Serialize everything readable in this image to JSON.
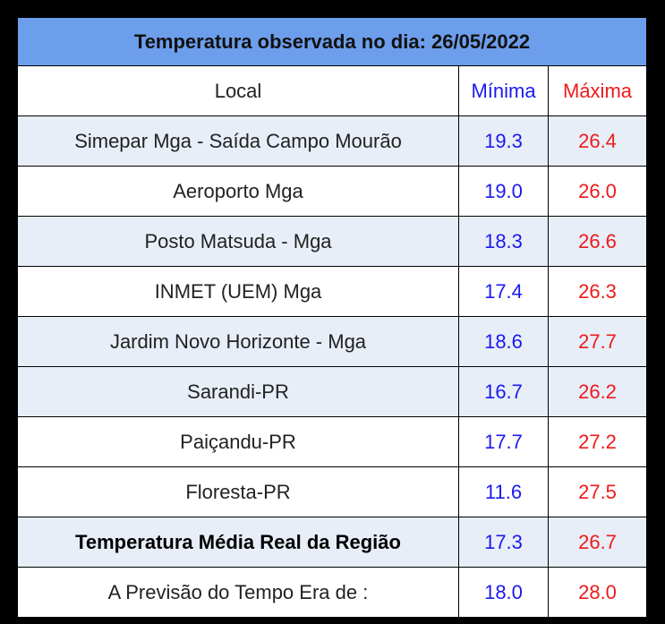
{
  "table": {
    "title": "Temperatura observada no dia: 26/05/2022",
    "header": [
      "Local",
      "Mínima",
      "Máxima"
    ],
    "rows": [
      [
        "Simepar Mga - Saída Campo Mourão",
        "19.3",
        "26.4"
      ],
      [
        "Aeroporto Mga",
        "19.0",
        "26.0"
      ],
      [
        "Posto Matsuda - Mga",
        "18.3",
        "26.6"
      ],
      [
        "INMET (UEM) Mga",
        "17.4",
        "26.3"
      ],
      [
        "Jardim Novo Horizonte - Mga",
        "18.6",
        "27.7"
      ],
      [
        "Sarandi-PR",
        "16.7",
        "26.2"
      ],
      [
        "Paiçandu-PR",
        "17.7",
        "27.2"
      ],
      [
        "Floresta-PR",
        "11.6",
        "27.5"
      ],
      [
        "Temperatura Média Real da Região",
        "17.3",
        "26.7"
      ],
      [
        "A Previsão do Tempo Era de :",
        "18.0",
        "28.0"
      ]
    ]
  }
}
